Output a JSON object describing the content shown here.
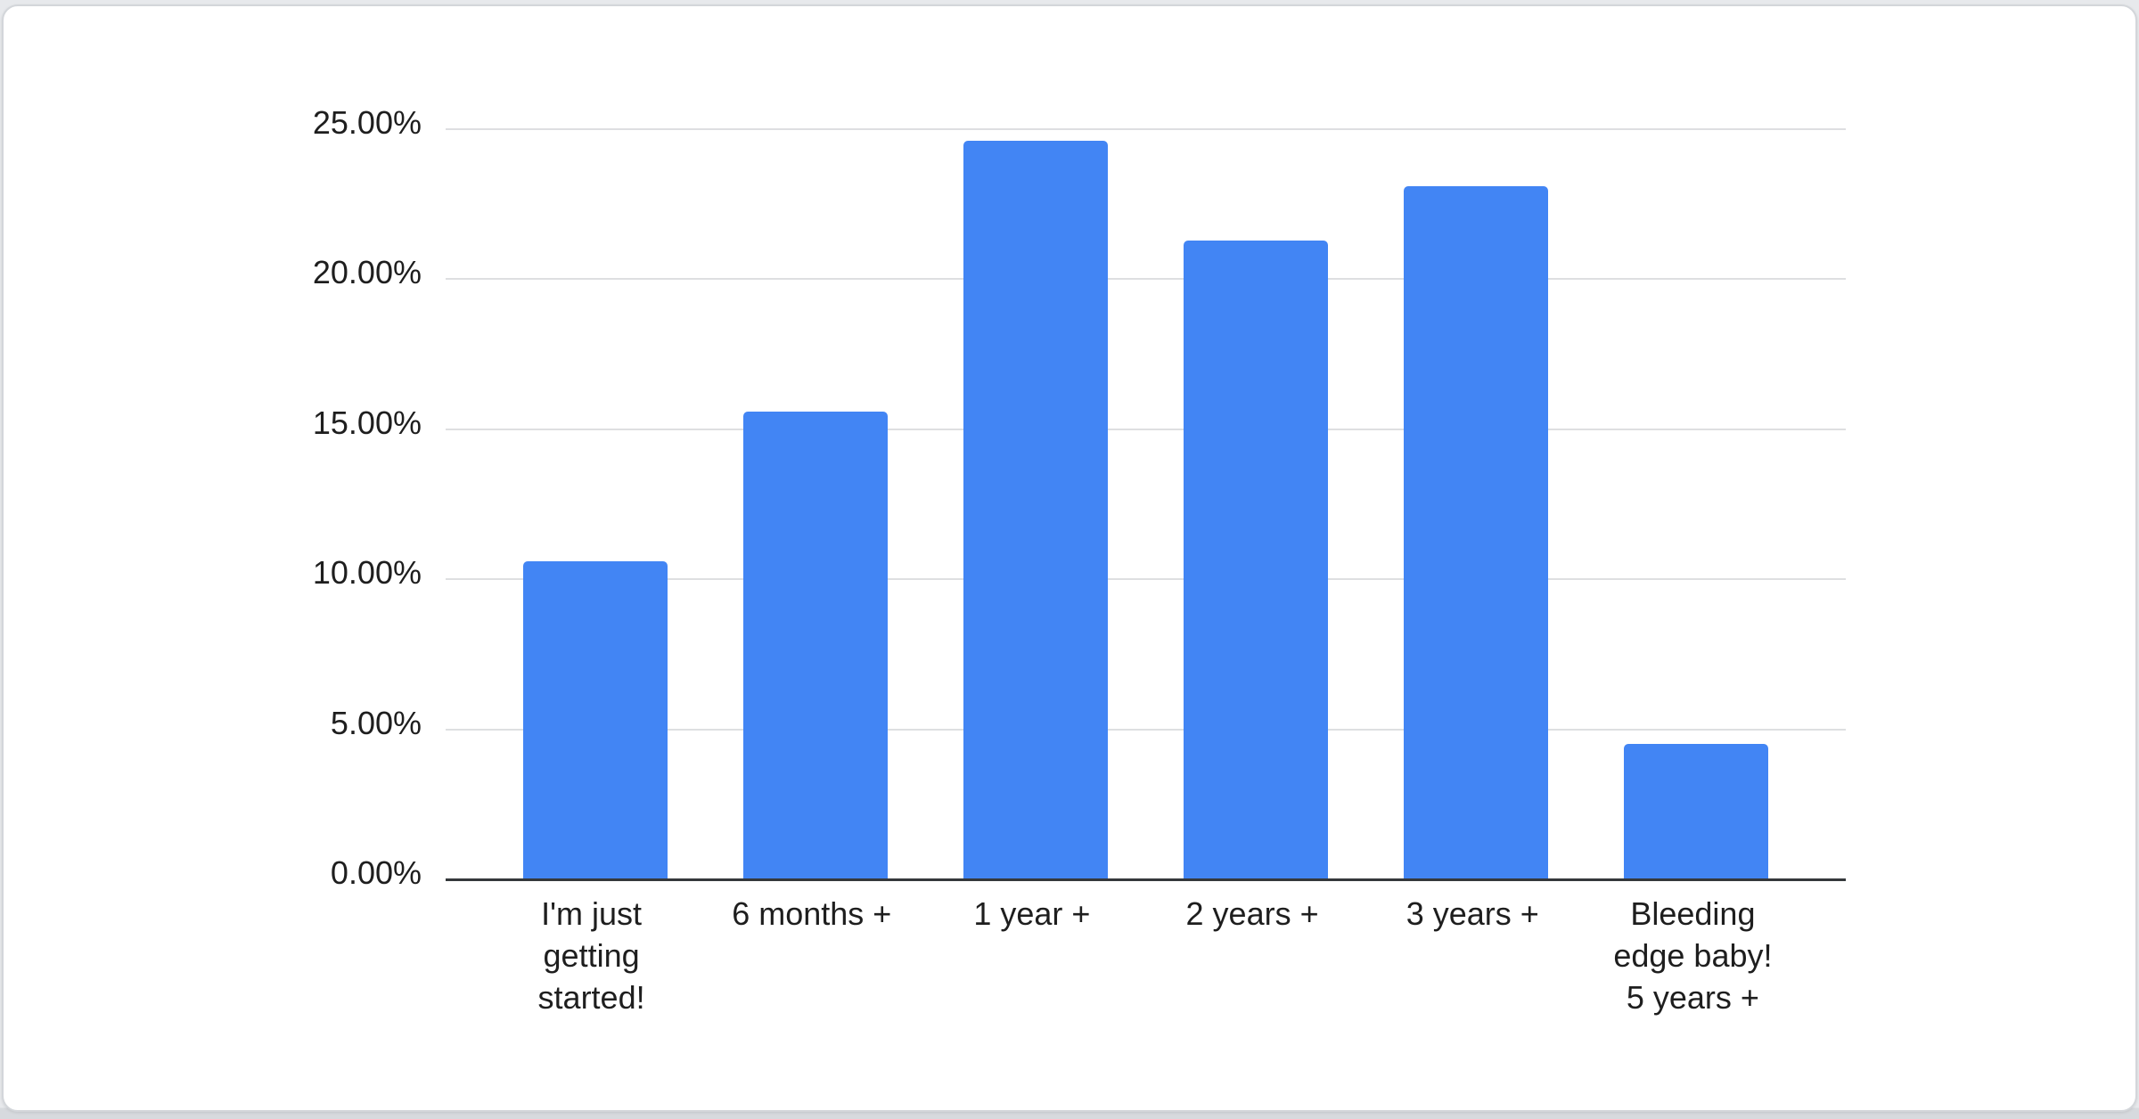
{
  "chart_data": {
    "type": "bar",
    "title": "",
    "xlabel": "",
    "ylabel": "",
    "categories": [
      "I'm just\ngetting\nstarted!",
      "6 months +",
      "1 year +",
      "2 years +",
      "3 years +",
      "Bleeding\nedge baby!\n5 years +"
    ],
    "values": [
      10.6,
      15.6,
      24.6,
      21.3,
      23.1,
      4.5
    ],
    "value_unit": "percent",
    "ylim": [
      0,
      25
    ],
    "ytick_labels": [
      "0.00%",
      "5.00%",
      "10.00%",
      "15.00%",
      "20.00%",
      "25.00%"
    ],
    "ytick_values": [
      0,
      5,
      10,
      15,
      20,
      25
    ],
    "grid": true,
    "legend": "none"
  },
  "colors": {
    "bar": "#4285f4",
    "gridline": "#dedfe1",
    "baseline": "#35383b",
    "axis_text": "#1e1e1e",
    "card_bg": "#ffffff",
    "card_border": "#d3d6da",
    "page_bg": "#e7e9ec",
    "page_bg_bottom": "#d7dade"
  }
}
